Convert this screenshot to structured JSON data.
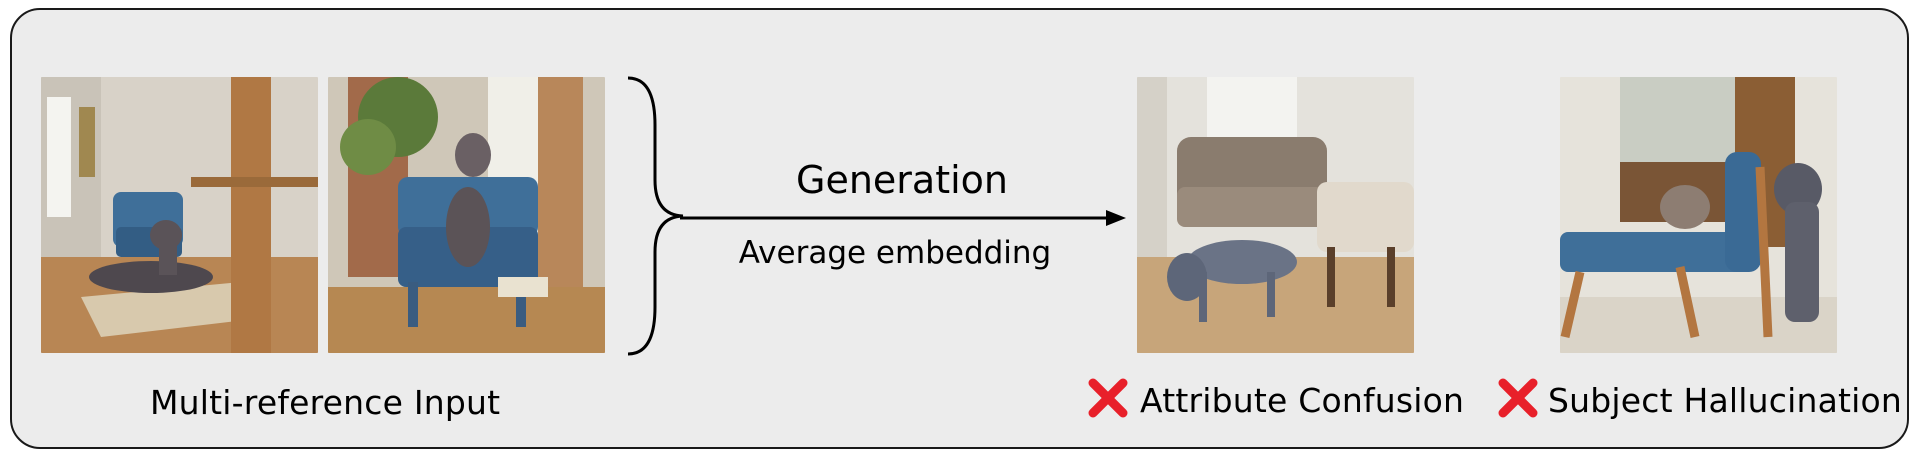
{
  "input_section": {
    "label": "Multi-reference Input"
  },
  "arrow": {
    "label_top": "Generation",
    "label_bottom": "Average embedding"
  },
  "outputs": [
    {
      "label": "Attribute Confusion",
      "status_icon": "red-x-icon"
    },
    {
      "label": "Subject Hallucination",
      "status_icon": "red-x-icon"
    }
  ],
  "colors": {
    "panel_bg": "#ececec",
    "panel_border": "#1a1a1a",
    "cross": "#e8202a",
    "chair_blue": "#3f6f99",
    "dog_gray": "#6b6670"
  }
}
